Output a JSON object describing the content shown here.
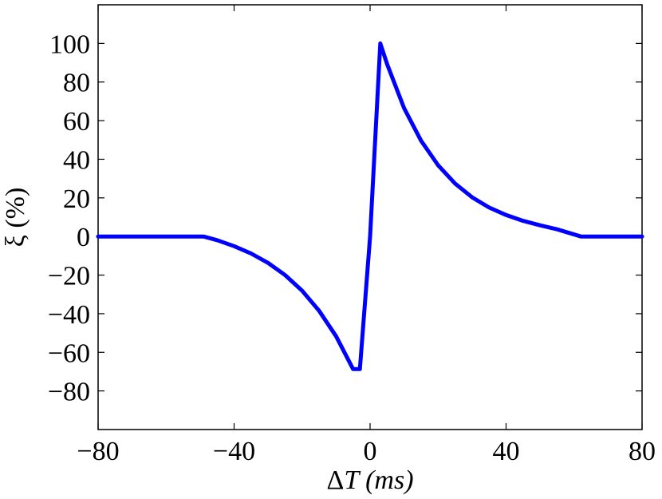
{
  "chart_data": {
    "type": "line",
    "xlabel_parts": [
      "Δ",
      "T",
      " (ms)"
    ],
    "ylabel": "ξ (%)",
    "xlim": [
      -80,
      80
    ],
    "ylim": [
      -100,
      120
    ],
    "xticks": [
      -80,
      -40,
      0,
      40,
      80
    ],
    "yticks": [
      -80,
      -60,
      -40,
      -20,
      0,
      20,
      40,
      60,
      80,
      100
    ],
    "xtick_labels": [
      "−80",
      "−40",
      "0",
      "40",
      "80"
    ],
    "ytick_labels": [
      "−80",
      "−60",
      "−40",
      "−20",
      "0",
      "20",
      "40",
      "60",
      "80",
      "100"
    ],
    "grid": false,
    "series": [
      {
        "color": "#0000ff",
        "x": [
          -80,
          -49,
          -45,
          -40,
          -35,
          -30,
          -25,
          -20,
          -15,
          -10,
          -5,
          -3,
          0,
          3,
          5,
          10,
          15,
          20,
          25,
          30,
          35,
          40,
          45,
          50,
          55,
          62,
          70,
          80
        ],
        "y": [
          0,
          0,
          -1.9,
          -5.0,
          -8.8,
          -13.7,
          -20.0,
          -28.1,
          -38.5,
          -51.7,
          -68.7,
          -68.7,
          0,
          100,
          89.3,
          66.5,
          49.6,
          36.9,
          27.4,
          20.3,
          15.0,
          11.1,
          8.1,
          5.8,
          3.7,
          0,
          0,
          0
        ]
      }
    ]
  }
}
